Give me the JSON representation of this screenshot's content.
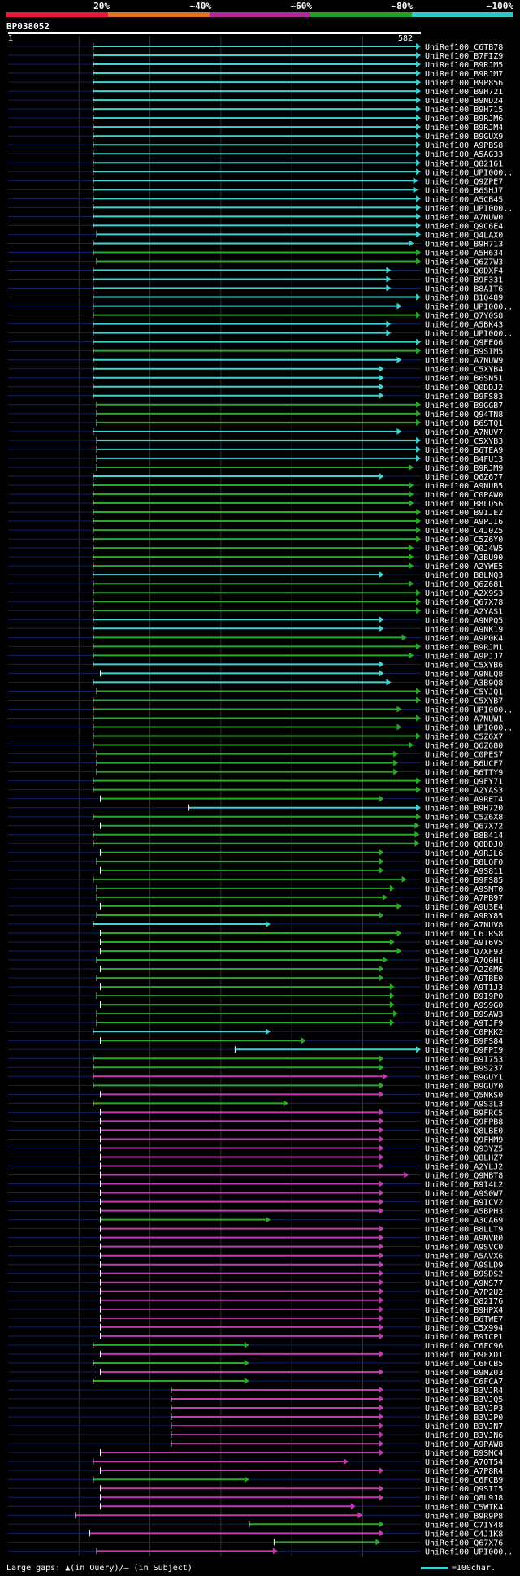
{
  "legend": {
    "labels": [
      "20%",
      "~40%",
      "~60%",
      "~80%",
      "~100%"
    ],
    "colors": [
      "#e8193a",
      "#e07020",
      "#b0289a",
      "#22a022",
      "#30c8c8"
    ]
  },
  "query": {
    "id": "BP038052",
    "start": "1",
    "end": "582"
  },
  "footer": {
    "gaps_text": "Large gaps: ▲(in Query)/— (in Subject)",
    "scale_text": "=100char."
  },
  "hits": [
    {
      "name": "UniRef100_C6TB78",
      "s": 1.2,
      "e": 5.82,
      "c": "cyan"
    },
    {
      "name": "UniRef100_B7FIZ9",
      "s": 1.2,
      "e": 5.82,
      "c": "cyan"
    },
    {
      "name": "UniRef100_B9RJM5",
      "s": 1.2,
      "e": 5.82,
      "c": "cyan"
    },
    {
      "name": "UniRef100_B9RJM7",
      "s": 1.2,
      "e": 5.82,
      "c": "cyan"
    },
    {
      "name": "UniRef100_B9P856",
      "s": 1.2,
      "e": 5.82,
      "c": "cyan"
    },
    {
      "name": "UniRef100_B9H721",
      "s": 1.2,
      "e": 5.82,
      "c": "cyan"
    },
    {
      "name": "UniRef100_B9ND24",
      "s": 1.2,
      "e": 5.82,
      "c": "cyan"
    },
    {
      "name": "UniRef100_B9H715",
      "s": 1.2,
      "e": 5.82,
      "c": "cyan"
    },
    {
      "name": "UniRef100_B9RJM6",
      "s": 1.2,
      "e": 5.82,
      "c": "cyan"
    },
    {
      "name": "UniRef100_B9RJM4",
      "s": 1.2,
      "e": 5.82,
      "c": "cyan"
    },
    {
      "name": "UniRef100_B9GUX9",
      "s": 1.2,
      "e": 5.82,
      "c": "cyan"
    },
    {
      "name": "UniRef100_A9PBS8",
      "s": 1.2,
      "e": 5.82,
      "c": "cyan"
    },
    {
      "name": "UniRef100_A5AG33",
      "s": 1.2,
      "e": 5.82,
      "c": "cyan"
    },
    {
      "name": "UniRef100_Q82161",
      "s": 1.2,
      "e": 5.82,
      "c": "cyan"
    },
    {
      "name": "UniRef100_UPI000..",
      "s": 1.2,
      "e": 5.82,
      "c": "cyan"
    },
    {
      "name": "UniRef100_Q9ZPE7",
      "s": 1.2,
      "e": 5.78,
      "c": "cyan"
    },
    {
      "name": "UniRef100_B6SHJ7",
      "s": 1.2,
      "e": 5.78,
      "c": "cyan"
    },
    {
      "name": "UniRef100_A5CB45",
      "s": 1.2,
      "e": 5.82,
      "c": "cyan"
    },
    {
      "name": "UniRef100_UPI000..",
      "s": 1.2,
      "e": 5.82,
      "c": "cyan"
    },
    {
      "name": "UniRef100_A7NUW0",
      "s": 1.2,
      "e": 5.82,
      "c": "cyan"
    },
    {
      "name": "UniRef100_Q9C6E4",
      "s": 1.2,
      "e": 5.82,
      "c": "cyan"
    },
    {
      "name": "UniRef100_Q4LAX0",
      "s": 1.25,
      "e": 5.82,
      "c": "cyan"
    },
    {
      "name": "UniRef100_B9H713",
      "s": 1.2,
      "e": 5.72,
      "c": "cyan"
    },
    {
      "name": "UniRef100_A5H634",
      "s": 1.2,
      "e": 5.82,
      "c": "green"
    },
    {
      "name": "UniRef100_Q6Z7W3",
      "s": 1.25,
      "e": 5.82,
      "c": "green"
    },
    {
      "name": "UniRef100_Q0DXF4",
      "s": 1.2,
      "e": 5.4,
      "c": "cyan"
    },
    {
      "name": "UniRef100_B9F331",
      "s": 1.2,
      "e": 5.4,
      "c": "cyan"
    },
    {
      "name": "UniRef100_B8AIT6",
      "s": 1.2,
      "e": 5.4,
      "c": "cyan"
    },
    {
      "name": "UniRef100_B1Q489",
      "s": 1.2,
      "e": 5.82,
      "c": "cyan"
    },
    {
      "name": "UniRef100_UPI000..",
      "s": 1.2,
      "e": 5.55,
      "c": "cyan"
    },
    {
      "name": "UniRef100_Q7Y0S8",
      "s": 1.2,
      "e": 5.82,
      "c": "green"
    },
    {
      "name": "UniRef100_A5BK43",
      "s": 1.2,
      "e": 5.4,
      "c": "cyan"
    },
    {
      "name": "UniRef100_UPI000..",
      "s": 1.2,
      "e": 5.4,
      "c": "cyan"
    },
    {
      "name": "UniRef100_Q9FE06",
      "s": 1.2,
      "e": 5.82,
      "c": "cyan"
    },
    {
      "name": "UniRef100_B9SIM5",
      "s": 1.2,
      "e": 5.82,
      "c": "green"
    },
    {
      "name": "UniRef100_A7NUW9",
      "s": 1.2,
      "e": 5.55,
      "c": "cyan"
    },
    {
      "name": "UniRef100_C5XYB4",
      "s": 1.2,
      "e": 5.3,
      "c": "cyan"
    },
    {
      "name": "UniRef100_B6SN51",
      "s": 1.2,
      "e": 5.3,
      "c": "cyan"
    },
    {
      "name": "UniRef100_Q0DDJ2",
      "s": 1.2,
      "e": 5.3,
      "c": "cyan"
    },
    {
      "name": "UniRef100_B9FS83",
      "s": 1.2,
      "e": 5.3,
      "c": "cyan"
    },
    {
      "name": "UniRef100_B9GGB7",
      "s": 1.25,
      "e": 5.82,
      "c": "green"
    },
    {
      "name": "UniRef100_Q94TN8",
      "s": 1.25,
      "e": 5.82,
      "c": "green"
    },
    {
      "name": "UniRef100_B6STQ1",
      "s": 1.25,
      "e": 5.82,
      "c": "green"
    },
    {
      "name": "UniRef100_A7NUV7",
      "s": 1.2,
      "e": 5.55,
      "c": "cyan"
    },
    {
      "name": "UniRef100_C5XYB3",
      "s": 1.25,
      "e": 5.82,
      "c": "cyan"
    },
    {
      "name": "UniRef100_B6TEA9",
      "s": 1.25,
      "e": 5.82,
      "c": "cyan"
    },
    {
      "name": "UniRef100_B4FU13",
      "s": 1.25,
      "e": 5.82,
      "c": "cyan"
    },
    {
      "name": "UniRef100_B9RJM9",
      "s": 1.25,
      "e": 5.72,
      "c": "green"
    },
    {
      "name": "UniRef100_Q6Z677",
      "s": 1.2,
      "e": 5.3,
      "c": "cyan"
    },
    {
      "name": "UniRef100_A9NUB5",
      "s": 1.2,
      "e": 5.72,
      "c": "green"
    },
    {
      "name": "UniRef100_C0PAW0",
      "s": 1.2,
      "e": 5.72,
      "c": "green"
    },
    {
      "name": "UniRef100_B8LQ56",
      "s": 1.2,
      "e": 5.72,
      "c": "green"
    },
    {
      "name": "UniRef100_B9IJE2",
      "s": 1.2,
      "e": 5.82,
      "c": "green"
    },
    {
      "name": "UniRef100_A9PJI6",
      "s": 1.2,
      "e": 5.82,
      "c": "green"
    },
    {
      "name": "UniRef100_C4J0Z5",
      "s": 1.2,
      "e": 5.82,
      "c": "green"
    },
    {
      "name": "UniRef100_C5Z6Y0",
      "s": 1.2,
      "e": 5.82,
      "c": "green"
    },
    {
      "name": "UniRef100_Q0J4W5",
      "s": 1.2,
      "e": 5.72,
      "c": "green"
    },
    {
      "name": "UniRef100_A3BU90",
      "s": 1.2,
      "e": 5.72,
      "c": "green"
    },
    {
      "name": "UniRef100_A2YWE5",
      "s": 1.2,
      "e": 5.72,
      "c": "green"
    },
    {
      "name": "UniRef100_B8LNQ3",
      "s": 1.2,
      "e": 5.3,
      "c": "cyan"
    },
    {
      "name": "UniRef100_Q6Z681",
      "s": 1.2,
      "e": 5.72,
      "c": "green"
    },
    {
      "name": "UniRef100_A2X9S3",
      "s": 1.2,
      "e": 5.82,
      "c": "green"
    },
    {
      "name": "UniRef100_Q67X78",
      "s": 1.2,
      "e": 5.82,
      "c": "green"
    },
    {
      "name": "UniRef100_A2YAS1",
      "s": 1.2,
      "e": 5.82,
      "c": "green"
    },
    {
      "name": "UniRef100_A9NPQ5",
      "s": 1.2,
      "e": 5.3,
      "c": "cyan"
    },
    {
      "name": "UniRef100_A9NK19",
      "s": 1.2,
      "e": 5.3,
      "c": "cyan"
    },
    {
      "name": "UniRef100_A9P0K4",
      "s": 1.2,
      "e": 5.62,
      "c": "green"
    },
    {
      "name": "UniRef100_B9RJM1",
      "s": 1.2,
      "e": 5.82,
      "c": "green"
    },
    {
      "name": "UniRef100_A9PJJ7",
      "s": 1.2,
      "e": 5.72,
      "c": "green"
    },
    {
      "name": "UniRef100_C5XYB6",
      "s": 1.2,
      "e": 5.3,
      "c": "cyan"
    },
    {
      "name": "UniRef100_A9NLQ8",
      "s": 1.3,
      "e": 5.3,
      "c": "cyan"
    },
    {
      "name": "UniRef100_A3B9Q8",
      "s": 1.2,
      "e": 5.4,
      "c": "cyan"
    },
    {
      "name": "UniRef100_C5YJQ1",
      "s": 1.25,
      "e": 5.82,
      "c": "green"
    },
    {
      "name": "UniRef100_C5XYB7",
      "s": 1.2,
      "e": 5.82,
      "c": "green"
    },
    {
      "name": "UniRef100_UPI000..",
      "s": 1.2,
      "e": 5.55,
      "c": "green"
    },
    {
      "name": "UniRef100_A7NUW1",
      "s": 1.2,
      "e": 5.82,
      "c": "green"
    },
    {
      "name": "UniRef100_UPI000..",
      "s": 1.2,
      "e": 5.55,
      "c": "green"
    },
    {
      "name": "UniRef100_C5Z6X7",
      "s": 1.2,
      "e": 5.82,
      "c": "green"
    },
    {
      "name": "UniRef100_Q6Z680",
      "s": 1.2,
      "e": 5.72,
      "c": "green"
    },
    {
      "name": "UniRef100_C0PES7",
      "s": 1.25,
      "e": 5.5,
      "c": "green"
    },
    {
      "name": "UniRef100_B6UCF7",
      "s": 1.25,
      "e": 5.5,
      "c": "green"
    },
    {
      "name": "UniRef100_B6TTY9",
      "s": 1.25,
      "e": 5.5,
      "c": "green"
    },
    {
      "name": "UniRef100_Q9FY71",
      "s": 1.2,
      "e": 5.82,
      "c": "green"
    },
    {
      "name": "UniRef100_A2YAS3",
      "s": 1.2,
      "e": 5.82,
      "c": "green"
    },
    {
      "name": "UniRef100_A9RET4",
      "s": 1.3,
      "e": 5.3,
      "c": "green"
    },
    {
      "name": "UniRef100_B9H720",
      "s": 2.55,
      "e": 5.82,
      "c": "cyan"
    },
    {
      "name": "UniRef100_C5Z6X8",
      "s": 1.2,
      "e": 5.82,
      "c": "green"
    },
    {
      "name": "UniRef100_Q67X72",
      "s": 1.3,
      "e": 5.8,
      "c": "green"
    },
    {
      "name": "UniRef100_B8B414",
      "s": 1.2,
      "e": 5.8,
      "c": "green"
    },
    {
      "name": "UniRef100_Q0DDJ0",
      "s": 1.2,
      "e": 5.8,
      "c": "green"
    },
    {
      "name": "UniRef100_A9RJL6",
      "s": 1.3,
      "e": 5.3,
      "c": "green"
    },
    {
      "name": "UniRef100_B8LQF0",
      "s": 1.25,
      "e": 5.3,
      "c": "green"
    },
    {
      "name": "UniRef100_A9S811",
      "s": 1.3,
      "e": 5.3,
      "c": "green"
    },
    {
      "name": "UniRef100_B9FS85",
      "s": 1.2,
      "e": 5.62,
      "c": "green"
    },
    {
      "name": "UniRef100_A9SMT0",
      "s": 1.25,
      "e": 5.45,
      "c": "green"
    },
    {
      "name": "UniRef100_A7PB97",
      "s": 1.25,
      "e": 5.35,
      "c": "green"
    },
    {
      "name": "UniRef100_A9U3E4",
      "s": 1.3,
      "e": 5.55,
      "c": "green"
    },
    {
      "name": "UniRef100_A9RY85",
      "s": 1.25,
      "e": 5.3,
      "c": "green"
    },
    {
      "name": "UniRef100_A7NUV8",
      "s": 1.2,
      "e": 3.7,
      "c": "cyan"
    },
    {
      "name": "UniRef100_C6JRS8",
      "s": 1.3,
      "e": 5.55,
      "c": "green"
    },
    {
      "name": "UniRef100_A9T6V5",
      "s": 1.3,
      "e": 5.45,
      "c": "green"
    },
    {
      "name": "UniRef100_Q7XF93",
      "s": 1.3,
      "e": 5.55,
      "c": "green"
    },
    {
      "name": "UniRef100_A7Q0H1",
      "s": 1.25,
      "e": 5.35,
      "c": "green"
    },
    {
      "name": "UniRef100_A2Z6M6",
      "s": 1.3,
      "e": 5.3,
      "c": "green"
    },
    {
      "name": "UniRef100_A9TBE0",
      "s": 1.25,
      "e": 5.3,
      "c": "green"
    },
    {
      "name": "UniRef100_A9T1J3",
      "s": 1.3,
      "e": 5.45,
      "c": "green"
    },
    {
      "name": "UniRef100_B9I9P0",
      "s": 1.25,
      "e": 5.45,
      "c": "green"
    },
    {
      "name": "UniRef100_A9S9G0",
      "s": 1.3,
      "e": 5.45,
      "c": "green"
    },
    {
      "name": "UniRef100_B9SAW3",
      "s": 1.25,
      "e": 5.5,
      "c": "green"
    },
    {
      "name": "UniRef100_A9TJF9",
      "s": 1.25,
      "e": 5.45,
      "c": "green"
    },
    {
      "name": "UniRef100_C0PKK2",
      "s": 1.2,
      "e": 3.7,
      "c": "cyan"
    },
    {
      "name": "UniRef100_B9FS84",
      "s": 1.3,
      "e": 4.2,
      "c": "green"
    },
    {
      "name": "UniRef100_Q9FPI9",
      "s": 3.2,
      "e": 5.82,
      "c": "cyan"
    },
    {
      "name": "UniRef100_B9I753",
      "s": 1.2,
      "e": 5.3,
      "c": "green"
    },
    {
      "name": "UniRef100_B9S237",
      "s": 1.2,
      "e": 5.3,
      "c": "green"
    },
    {
      "name": "UniRef100_B9GUY1",
      "s": 1.2,
      "e": 5.35,
      "c": "magenta"
    },
    {
      "name": "UniRef100_B9GUY0",
      "s": 1.2,
      "e": 5.3,
      "c": "green"
    },
    {
      "name": "UniRef100_Q5NKS0",
      "s": 1.3,
      "e": 5.3,
      "c": "magenta"
    },
    {
      "name": "UniRef100_A9S3L3",
      "s": 1.2,
      "e": 3.95,
      "c": "green"
    },
    {
      "name": "UniRef100_B9FRC5",
      "s": 1.3,
      "e": 5.3,
      "c": "magenta"
    },
    {
      "name": "UniRef100_Q9FPB8",
      "s": 1.3,
      "e": 5.3,
      "c": "magenta"
    },
    {
      "name": "UniRef100_Q8LBE0",
      "s": 1.3,
      "e": 5.3,
      "c": "magenta"
    },
    {
      "name": "UniRef100_Q9FHM9",
      "s": 1.3,
      "e": 5.3,
      "c": "magenta"
    },
    {
      "name": "UniRef100_Q93YZ5",
      "s": 1.3,
      "e": 5.3,
      "c": "magenta"
    },
    {
      "name": "UniRef100_Q8LHZ7",
      "s": 1.3,
      "e": 5.3,
      "c": "magenta"
    },
    {
      "name": "UniRef100_A2YLJ2",
      "s": 1.3,
      "e": 5.3,
      "c": "magenta"
    },
    {
      "name": "UniRef100_Q9MBT8",
      "s": 1.3,
      "e": 5.65,
      "c": "magenta"
    },
    {
      "name": "UniRef100_B9I4L2",
      "s": 1.3,
      "e": 5.3,
      "c": "magenta"
    },
    {
      "name": "UniRef100_A9S0W7",
      "s": 1.3,
      "e": 5.3,
      "c": "magenta"
    },
    {
      "name": "UniRef100_B9ICV2",
      "s": 1.3,
      "e": 5.3,
      "c": "magenta"
    },
    {
      "name": "UniRef100_A5BPH3",
      "s": 1.3,
      "e": 5.3,
      "c": "magenta"
    },
    {
      "name": "UniRef100_A3CA69",
      "s": 1.3,
      "e": 3.7,
      "c": "green"
    },
    {
      "name": "UniRef100_B8LLT9",
      "s": 1.3,
      "e": 5.3,
      "c": "magenta"
    },
    {
      "name": "UniRef100_A9NVR0",
      "s": 1.3,
      "e": 5.3,
      "c": "magenta"
    },
    {
      "name": "UniRef100_A9SVC0",
      "s": 1.3,
      "e": 5.3,
      "c": "magenta"
    },
    {
      "name": "UniRef100_A5AVX6",
      "s": 1.3,
      "e": 5.3,
      "c": "magenta"
    },
    {
      "name": "UniRef100_A9SLD9",
      "s": 1.3,
      "e": 5.3,
      "c": "magenta"
    },
    {
      "name": "UniRef100_B9SDS2",
      "s": 1.3,
      "e": 5.3,
      "c": "magenta"
    },
    {
      "name": "UniRef100_A9NS77",
      "s": 1.3,
      "e": 5.3,
      "c": "magenta"
    },
    {
      "name": "UniRef100_A7P2U2",
      "s": 1.3,
      "e": 5.3,
      "c": "magenta"
    },
    {
      "name": "UniRef100_Q82I76",
      "s": 1.3,
      "e": 5.3,
      "c": "magenta"
    },
    {
      "name": "UniRef100_B9HPX4",
      "s": 1.3,
      "e": 5.3,
      "c": "magenta"
    },
    {
      "name": "UniRef100_B6TWE7",
      "s": 1.3,
      "e": 5.3,
      "c": "magenta"
    },
    {
      "name": "UniRef100_C5X994",
      "s": 1.3,
      "e": 5.3,
      "c": "magenta"
    },
    {
      "name": "UniRef100_B9ICP1",
      "s": 1.3,
      "e": 5.3,
      "c": "magenta"
    },
    {
      "name": "UniRef100_C6FC96",
      "s": 1.2,
      "e": 3.4,
      "c": "green"
    },
    {
      "name": "UniRef100_B9FXD1",
      "s": 1.3,
      "e": 5.3,
      "c": "magenta"
    },
    {
      "name": "UniRef100_C6FCB5",
      "s": 1.2,
      "e": 3.4,
      "c": "green"
    },
    {
      "name": "UniRef100_B9MZ03",
      "s": 1.3,
      "e": 5.3,
      "c": "magenta"
    },
    {
      "name": "UniRef100_C6FCA7",
      "s": 1.2,
      "e": 3.4,
      "c": "green"
    },
    {
      "name": "UniRef100_B3VJR4",
      "s": 2.3,
      "e": 5.3,
      "c": "magenta"
    },
    {
      "name": "UniRef100_B3VJQ5",
      "s": 2.3,
      "e": 5.3,
      "c": "magenta"
    },
    {
      "name": "UniRef100_B3VJP3",
      "s": 2.3,
      "e": 5.3,
      "c": "magenta"
    },
    {
      "name": "UniRef100_B3VJP0",
      "s": 2.3,
      "e": 5.3,
      "c": "magenta"
    },
    {
      "name": "UniRef100_B3VJN7",
      "s": 2.3,
      "e": 5.3,
      "c": "magenta"
    },
    {
      "name": "UniRef100_B3VJN6",
      "s": 2.3,
      "e": 5.3,
      "c": "magenta"
    },
    {
      "name": "UniRef100_A9PAW8",
      "s": 2.3,
      "e": 5.3,
      "c": "magenta"
    },
    {
      "name": "UniRef100_B9SMC4",
      "s": 1.3,
      "e": 5.3,
      "c": "magenta"
    },
    {
      "name": "UniRef100_A7QT54",
      "s": 1.2,
      "e": 4.8,
      "c": "magenta"
    },
    {
      "name": "UniRef100_A7P8R4",
      "s": 1.3,
      "e": 5.3,
      "c": "magenta"
    },
    {
      "name": "UniRef100_C6FCB9",
      "s": 1.2,
      "e": 3.4,
      "c": "green"
    },
    {
      "name": "UniRef100_Q9SII5",
      "s": 1.3,
      "e": 5.3,
      "c": "magenta"
    },
    {
      "name": "UniRef100_Q8L9J8",
      "s": 1.3,
      "e": 5.3,
      "c": "magenta"
    },
    {
      "name": "UniRef100_C5WTK4",
      "s": 1.3,
      "e": 4.9,
      "c": "magenta"
    },
    {
      "name": "UniRef100_B9R9P8",
      "s": 0.95,
      "e": 5.0,
      "c": "magenta"
    },
    {
      "name": "UniRef100_C7IY48",
      "s": 3.4,
      "e": 5.3,
      "c": "green"
    },
    {
      "name": "UniRef100_C4J1K8",
      "s": 1.15,
      "e": 5.3,
      "c": "magenta"
    },
    {
      "name": "UniRef100_Q67X76",
      "s": 3.75,
      "e": 5.25,
      "c": "green"
    },
    {
      "name": "UniRef100_UPI000..",
      "s": 1.25,
      "e": 3.8,
      "c": "magenta"
    }
  ]
}
